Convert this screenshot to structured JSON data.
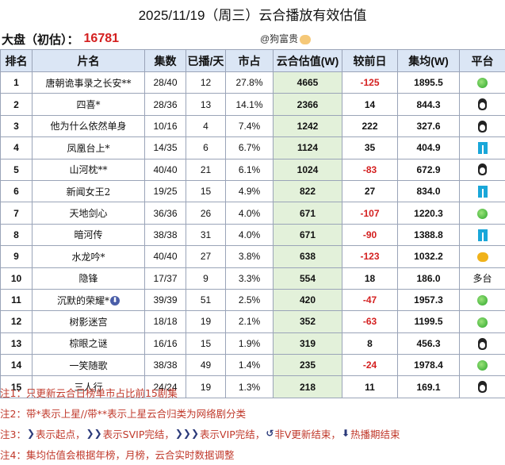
{
  "title": "2025/11/19（周三）云合播放有效估值",
  "summary": {
    "label": "大盘（初估）：",
    "value": "16781",
    "watermark": "@狗富贵"
  },
  "table": {
    "headers": [
      "排名",
      "片名",
      "集数",
      "已播/天",
      "市占",
      "云合估值(W)",
      "较前日",
      "集均(W)",
      "平台"
    ],
    "rows": [
      {
        "rank": "1",
        "name": "唐朝诡事录之长安**",
        "episodes": "28/40",
        "days": "12",
        "share": "27.8%",
        "estimate": "4665",
        "change": "-125",
        "avg": "1895.5",
        "platform": "green-icon"
      },
      {
        "rank": "2",
        "name": "四喜*",
        "episodes": "28/36",
        "days": "13",
        "share": "14.1%",
        "estimate": "2366",
        "change": "14",
        "avg": "844.3",
        "platform": "penguin-icon"
      },
      {
        "rank": "3",
        "name": "他为什么依然单身",
        "episodes": "10/16",
        "days": "4",
        "share": "7.4%",
        "estimate": "1242",
        "change": "222",
        "avg": "327.6",
        "platform": "penguin-icon"
      },
      {
        "rank": "4",
        "name": "凤凰台上*",
        "episodes": "14/35",
        "days": "6",
        "share": "6.7%",
        "estimate": "1124",
        "change": "35",
        "avg": "404.9",
        "platform": "pants-icon"
      },
      {
        "rank": "5",
        "name": "山河枕**",
        "episodes": "40/40",
        "days": "21",
        "share": "6.1%",
        "estimate": "1024",
        "change": "-83",
        "avg": "672.9",
        "platform": "penguin-icon"
      },
      {
        "rank": "6",
        "name": "新闻女王2",
        "episodes": "19/25",
        "days": "15",
        "share": "4.9%",
        "estimate": "822",
        "change": "27",
        "avg": "834.0",
        "platform": "pants-icon"
      },
      {
        "rank": "7",
        "name": "天地剑心",
        "episodes": "36/36",
        "days": "26",
        "share": "4.0%",
        "estimate": "671",
        "change": "-107",
        "avg": "1220.3",
        "platform": "green-icon"
      },
      {
        "rank": "8",
        "name": "暗河传",
        "episodes": "38/38",
        "days": "31",
        "share": "4.0%",
        "estimate": "671",
        "change": "-90",
        "avg": "1388.8",
        "platform": "pants-icon"
      },
      {
        "rank": "9",
        "name": "水龙吟*",
        "episodes": "40/40",
        "days": "27",
        "share": "3.8%",
        "estimate": "638",
        "change": "-123",
        "avg": "1032.2",
        "platform": "mango-icon"
      },
      {
        "rank": "10",
        "name": "隐锋",
        "episodes": "17/37",
        "days": "9",
        "share": "3.3%",
        "estimate": "554",
        "change": "18",
        "avg": "186.0",
        "platform": "多台"
      },
      {
        "rank": "11",
        "name": "沉默的荣耀*",
        "episodes": "39/39",
        "days": "51",
        "share": "2.5%",
        "estimate": "420",
        "change": "-47",
        "avg": "1957.3",
        "platform": "green-icon",
        "hot": true
      },
      {
        "rank": "12",
        "name": "树影迷宫",
        "episodes": "18/18",
        "days": "19",
        "share": "2.1%",
        "estimate": "352",
        "change": "-63",
        "avg": "1199.5",
        "platform": "green-icon"
      },
      {
        "rank": "13",
        "name": "棕眼之谜",
        "episodes": "16/16",
        "days": "15",
        "share": "1.9%",
        "estimate": "319",
        "change": "8",
        "avg": "456.3",
        "platform": "penguin-icon"
      },
      {
        "rank": "14",
        "name": "一笑随歌",
        "episodes": "38/38",
        "days": "49",
        "share": "1.4%",
        "estimate": "235",
        "change": "-24",
        "avg": "1978.4",
        "platform": "green-icon"
      },
      {
        "rank": "15",
        "name": "三人行",
        "episodes": "24/24",
        "days": "19",
        "share": "1.3%",
        "estimate": "218",
        "change": "11",
        "avg": "169.1",
        "platform": "penguin-icon"
      }
    ]
  },
  "notes": [
    "注1：只更新云合日榜单市占比前15剧集",
    "注2：带*表示上星//带**表示上星云合归类为网络剧分类",
    "注3：",
    "注4：集均估值会根据年榜，月榜，云合实时数据调整"
  ],
  "note3_parts": [
    "表示起点，",
    "表示SVIP完结，",
    "表示VIP完结，",
    "非V更新结束，",
    "热播期结束"
  ],
  "colors": {
    "header_bg": "#dbe6f5",
    "estimate_bg": "#e3f1da",
    "negative": "#d42020",
    "note": "#c0392b"
  }
}
